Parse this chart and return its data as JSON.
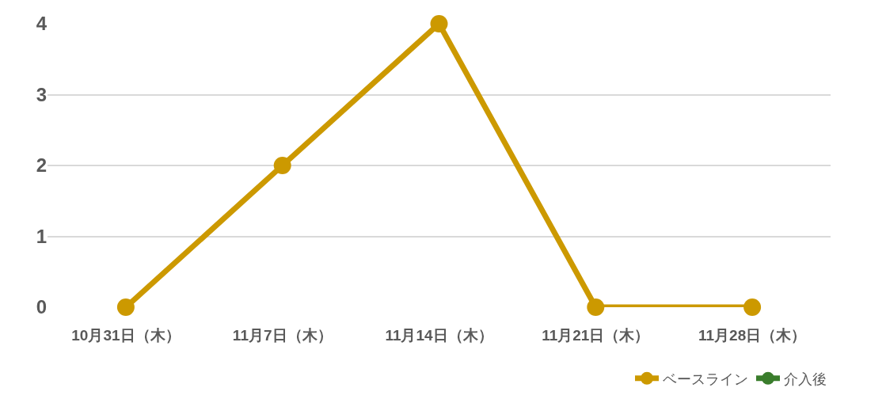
{
  "chart_data": {
    "type": "line",
    "categories": [
      "10月31日（木）",
      "11月7日（木）",
      "11月14日（木）",
      "11月21日（木）",
      "11月28日（木）"
    ],
    "series": [
      {
        "name": "ベースライン",
        "color": "#cc9900",
        "values": [
          0,
          2,
          4,
          0,
          0
        ]
      },
      {
        "name": "介入後",
        "color": "#3a7d2c",
        "values": [
          null,
          null,
          null,
          null,
          null
        ]
      }
    ],
    "ylim": [
      0,
      4
    ],
    "yticks": [
      0,
      1,
      2,
      3,
      4
    ],
    "grid": "y",
    "legend": "bottom right",
    "marker": "circle",
    "line_style": "solid"
  }
}
